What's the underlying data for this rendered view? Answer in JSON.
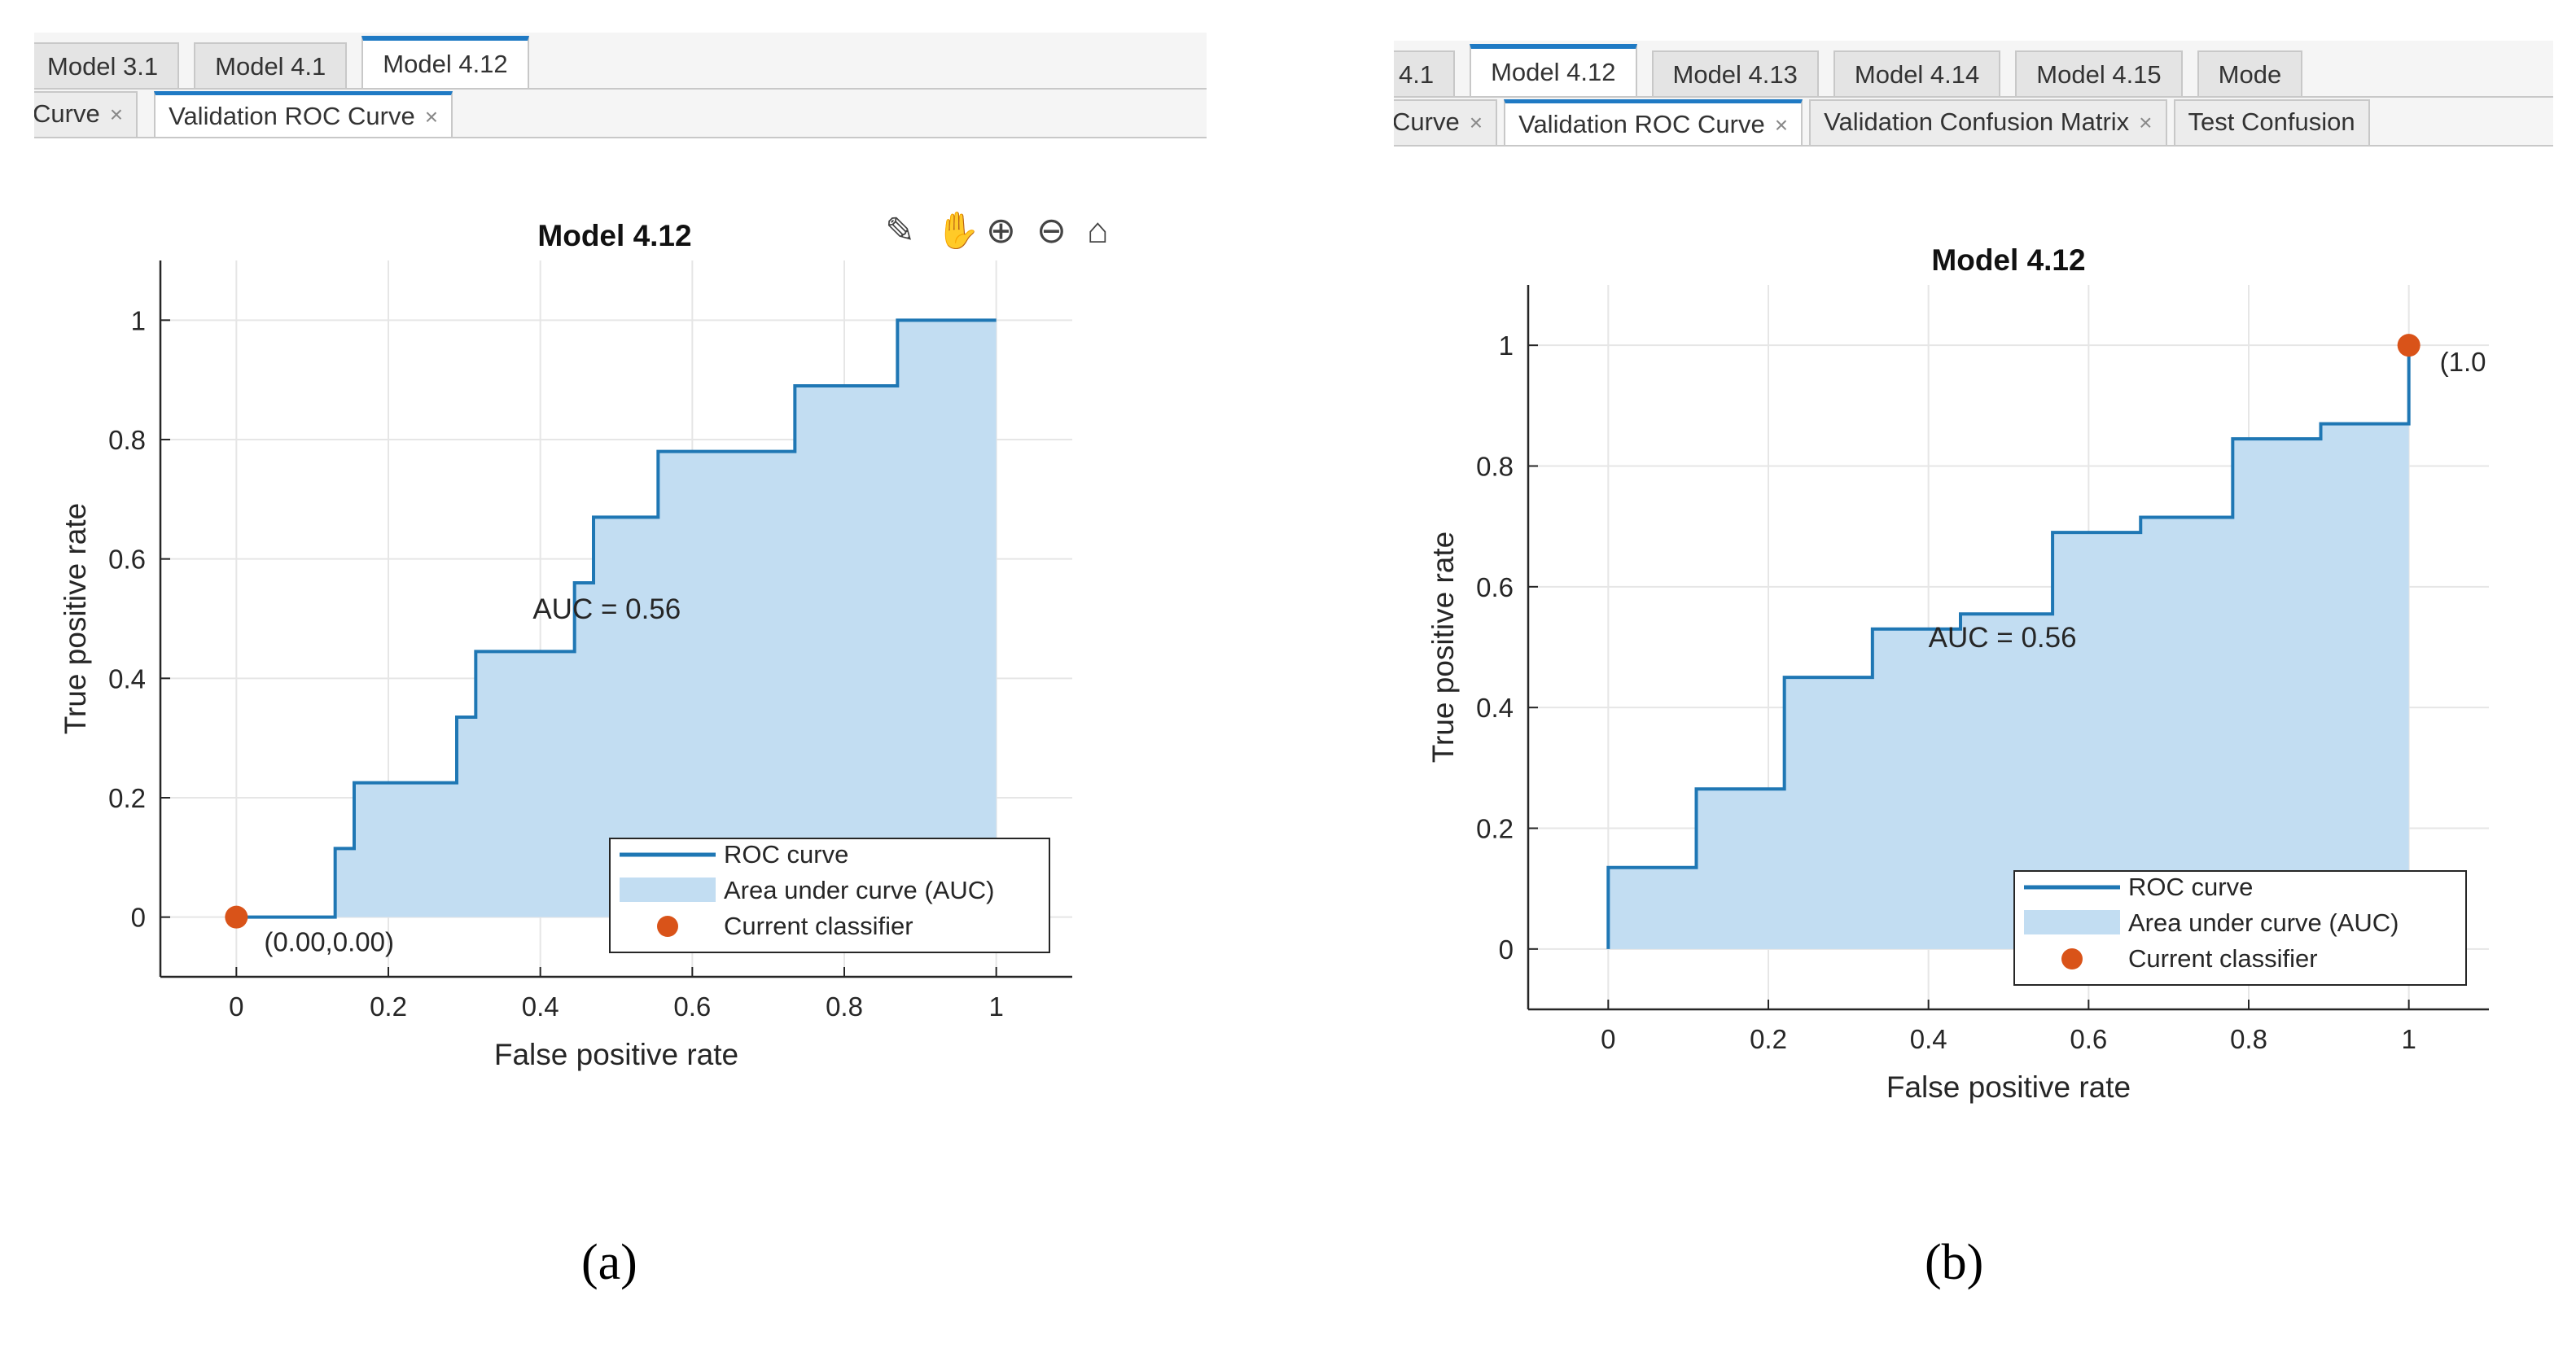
{
  "panels": [
    {
      "id": "a",
      "model_tabs": [
        "Model 3.1",
        "Model 4.1",
        "Model 4.12"
      ],
      "active_model_tab": 2,
      "plot_tabs": [
        {
          "label": "Curve",
          "close": "×"
        },
        {
          "label": "Validation ROC Curve",
          "close": "×"
        }
      ],
      "active_plot_tab": 1,
      "caption": "(a)"
    },
    {
      "id": "b",
      "model_tabs": [
        "4.1",
        "Model 4.12",
        "Model 4.13",
        "Model 4.14",
        "Model 4.15",
        "Mode"
      ],
      "active_model_tab": 1,
      "plot_tabs": [
        {
          "label": "Curve",
          "close": "×"
        },
        {
          "label": "Validation ROC Curve",
          "close": "×"
        },
        {
          "label": "Validation Confusion Matrix",
          "close": "×"
        },
        {
          "label": "Test Confusion",
          "close": ""
        }
      ],
      "active_plot_tab": 1,
      "caption": "(b)"
    }
  ],
  "toolbar_icons": [
    "brush-icon",
    "pan-hand-icon",
    "zoom-in-icon",
    "zoom-out-icon",
    "home-icon"
  ],
  "colors": {
    "roc_line": "#1f77b4",
    "auc_fill": "#c2ddf2",
    "classifier": "#d95319",
    "tab_accent": "#1f7ac4"
  },
  "chart_data": [
    {
      "type": "area",
      "title": "Model 4.12",
      "xlabel": "False positive rate",
      "ylabel": "True positive rate",
      "xlim": [
        -0.1,
        1.1
      ],
      "ylim": [
        -0.1,
        1.1
      ],
      "xticks": [
        0,
        0.2,
        0.4,
        0.6,
        0.8,
        1
      ],
      "yticks": [
        0,
        0.2,
        0.4,
        0.6,
        0.8,
        1
      ],
      "xtick_labels": [
        "0",
        "0.2",
        "0.4",
        "0.6",
        "0.8",
        "1"
      ],
      "ytick_labels": [
        "0",
        "0.2",
        "0.4",
        "0.6",
        "0.8",
        "1"
      ],
      "grid": true,
      "roc_curve": {
        "name": "ROC curve",
        "x": [
          0,
          0.13,
          0.13,
          0.155,
          0.155,
          0.29,
          0.29,
          0.315,
          0.315,
          0.445,
          0.445,
          0.47,
          0.47,
          0.555,
          0.555,
          0.735,
          0.735,
          0.87,
          0.87,
          1.0
        ],
        "y": [
          0,
          0,
          0.115,
          0.115,
          0.225,
          0.225,
          0.335,
          0.335,
          0.445,
          0.445,
          0.56,
          0.56,
          0.67,
          0.67,
          0.78,
          0.78,
          0.89,
          0.89,
          1.0,
          1.0
        ]
      },
      "auc_label": "AUC = 0.56",
      "auc_label_pos": [
        0.39,
        0.5
      ],
      "current_classifier": {
        "x": 0,
        "y": 0,
        "label": "(0.00,0.00)"
      },
      "legend": {
        "entries": [
          "ROC curve",
          "Area under curve (AUC)",
          "Current classifier"
        ],
        "location": "bottom-right"
      }
    },
    {
      "type": "area",
      "title": "Model 4.12",
      "xlabel": "False positive rate",
      "ylabel": "True positive rate",
      "xlim": [
        -0.1,
        1.1
      ],
      "ylim": [
        -0.1,
        1.1
      ],
      "xticks": [
        0,
        0.2,
        0.4,
        0.6,
        0.8,
        1
      ],
      "yticks": [
        0,
        0.2,
        0.4,
        0.6,
        0.8,
        1
      ],
      "xtick_labels": [
        "0",
        "0.2",
        "0.4",
        "0.6",
        "0.8",
        "1"
      ],
      "ytick_labels": [
        "0",
        "0.2",
        "0.4",
        "0.6",
        "0.8",
        "1"
      ],
      "grid": true,
      "roc_curve": {
        "name": "ROC curve",
        "x": [
          0,
          0,
          0.11,
          0.11,
          0.22,
          0.22,
          0.33,
          0.33,
          0.44,
          0.44,
          0.555,
          0.555,
          0.665,
          0.665,
          0.78,
          0.78,
          0.89,
          0.89,
          1.0,
          1.0
        ],
        "y": [
          0,
          0.135,
          0.135,
          0.265,
          0.265,
          0.45,
          0.45,
          0.53,
          0.53,
          0.555,
          0.555,
          0.69,
          0.69,
          0.715,
          0.715,
          0.845,
          0.845,
          0.87,
          0.87,
          1.0
        ]
      },
      "auc_label": "AUC = 0.56",
      "auc_label_pos": [
        0.4,
        0.5
      ],
      "current_classifier": {
        "x": 1,
        "y": 1,
        "label": "(1.0"
      },
      "legend": {
        "entries": [
          "ROC curve",
          "Area under curve (AUC)",
          "Current classifier"
        ],
        "location": "bottom-right"
      }
    }
  ]
}
